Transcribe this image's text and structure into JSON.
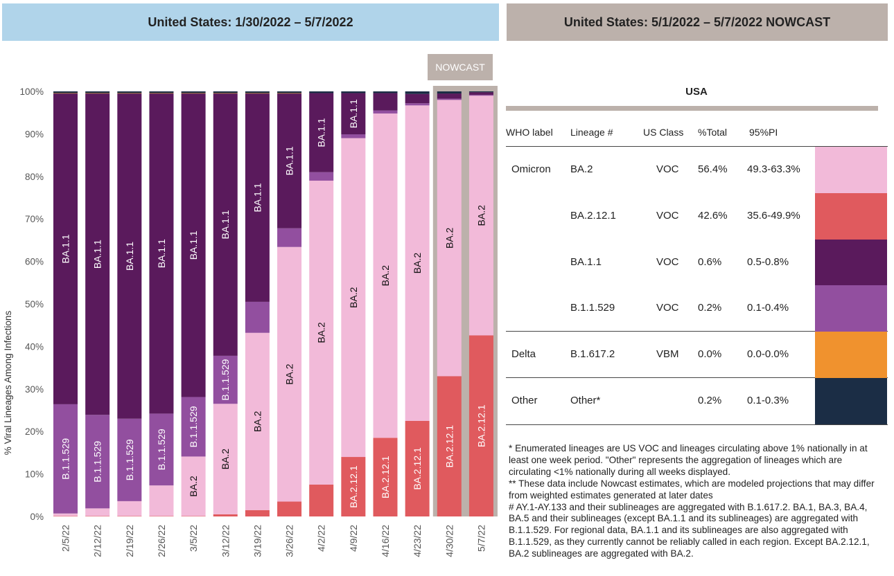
{
  "headers": {
    "left": "United States: 1/30/2022 – 5/7/2022",
    "right": "United States: 5/1/2022 – 5/7/2022 NOWCAST"
  },
  "nowcast_label": "NOWCAST",
  "colors": {
    "BA.2": "#f2bad9",
    "BA.2.12.1": "#e05a5e",
    "BA.1.1": "#5a1a5c",
    "B.1.1.529": "#924f9f",
    "B.1.617.2": "#f0922e",
    "Other": "#1b2d45",
    "nowcast_header": "#bcb1ab",
    "left_header": "#b0d4ea"
  },
  "chart_data": {
    "type": "bar",
    "stacked": true,
    "ylabel": "% Viral Lineages Among Infections",
    "ylim": [
      0,
      100
    ],
    "yticks": [
      "0%",
      "10%",
      "20%",
      "30%",
      "40%",
      "50%",
      "60%",
      "70%",
      "80%",
      "90%",
      "100%"
    ],
    "categories": [
      "2/5/22",
      "2/12/22",
      "2/19/22",
      "2/26/22",
      "3/5/22",
      "3/12/22",
      "3/19/22",
      "3/26/22",
      "4/2/22",
      "4/9/22",
      "4/16/22",
      "4/23/22",
      "4/30/22",
      "5/7/22"
    ],
    "nowcast_categories": [
      "4/30/22",
      "5/7/22"
    ],
    "series": [
      {
        "name": "BA.2.12.1",
        "values": [
          0.1,
          0.1,
          0.1,
          0.1,
          0.1,
          0.5,
          1.5,
          3.5,
          7.5,
          14,
          18.5,
          22.5,
          33,
          42.6
        ]
      },
      {
        "name": "BA.2",
        "values": [
          0.6,
          1.8,
          3.5,
          7.2,
          14,
          26,
          41.7,
          59.9,
          71.5,
          75,
          76.3,
          74.2,
          65,
          56.4
        ]
      },
      {
        "name": "B.1.1.529",
        "values": [
          25.7,
          22,
          19.4,
          16.9,
          14,
          11.3,
          7.3,
          4.4,
          2,
          0.9,
          0.7,
          0.5,
          0.3,
          0.2
        ]
      },
      {
        "name": "BA.1.1",
        "values": [
          73.1,
          75.6,
          76.5,
          75.3,
          71.4,
          61.7,
          49,
          31.7,
          18.6,
          9.7,
          4.1,
          2.2,
          1.2,
          0.6
        ]
      },
      {
        "name": "B.1.617.2",
        "values": [
          0.1,
          0.1,
          0.1,
          0.1,
          0.1,
          0.1,
          0.1,
          0.1,
          0,
          0,
          0,
          0,
          0,
          0
        ]
      },
      {
        "name": "Other",
        "values": [
          0.4,
          0.4,
          0.4,
          0.4,
          0.4,
          0.4,
          0.4,
          0.4,
          0.4,
          0.4,
          0.4,
          0.6,
          0.5,
          0.2
        ]
      }
    ],
    "bar_labels": [
      {
        "series": "BA.1.1",
        "bars": [
          0,
          1,
          2,
          3,
          4,
          5,
          6,
          7,
          8,
          9
        ],
        "text": "BA.1.1"
      },
      {
        "series": "B.1.1.529",
        "bars": [
          0,
          1,
          2,
          3,
          4,
          5
        ],
        "text": "B.1.1.529"
      },
      {
        "series": "BA.2",
        "bars": [
          4,
          5,
          6,
          7,
          8,
          9,
          10,
          11,
          12,
          13
        ],
        "text": "BA.2"
      },
      {
        "series": "BA.2.12.1",
        "bars": [
          9,
          10,
          11,
          12,
          13
        ],
        "text": "BA.2.12.1"
      }
    ]
  },
  "table": {
    "title": "USA",
    "columns": [
      "WHO label",
      "Lineage #",
      "US Class",
      "%Total",
      "95%PI"
    ],
    "rows": [
      {
        "who": "Omicron",
        "lineage": "BA.2",
        "class": "VOC",
        "total": "56.4%",
        "pi": "49.3-63.3%",
        "color_key": "BA.2"
      },
      {
        "who": "",
        "lineage": "BA.2.12.1",
        "class": "VOC",
        "total": "42.6%",
        "pi": "35.6-49.9%",
        "color_key": "BA.2.12.1"
      },
      {
        "who": "",
        "lineage": "BA.1.1",
        "class": "VOC",
        "total": "0.6%",
        "pi": "0.5-0.8%",
        "color_key": "BA.1.1"
      },
      {
        "who": "",
        "lineage": "B.1.1.529",
        "class": "VOC",
        "total": "0.2%",
        "pi": "0.1-0.4%",
        "color_key": "B.1.1.529"
      },
      {
        "who": "Delta",
        "lineage": "B.1.617.2",
        "class": "VBM",
        "total": "0.0%",
        "pi": "0.0-0.0%",
        "color_key": "B.1.617.2"
      },
      {
        "who": "Other",
        "lineage": "Other*",
        "class": "",
        "total": "0.2%",
        "pi": "0.1-0.3%",
        "color_key": "Other"
      }
    ]
  },
  "notes": [
    "*      Enumerated lineages are US VOC and lineages circulating above 1% nationally in at least one week period. \"Other\" represents the aggregation of lineages which are circulating <1% nationally during all weeks displayed.",
    "**      These data include Nowcast estimates, which are modeled projections that may differ from weighted estimates generated at later dates",
    "#      AY.1-AY.133 and their sublineages are aggregated with B.1.617.2. BA.1, BA.3, BA.4, BA.5 and their sublineages (except BA.1.1 and its sublineages) are aggregated with B.1.1.529. For regional data, BA.1.1 and its sublineages are also aggregated with B.1.1.529, as they currently cannot be reliably called in each region. Except BA.2.12.1, BA.2 sublineages are aggregated with BA.2."
  ]
}
